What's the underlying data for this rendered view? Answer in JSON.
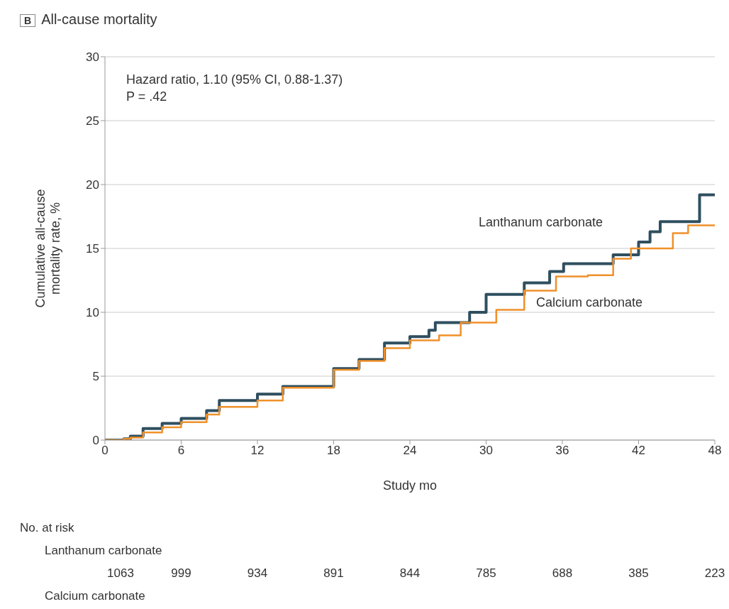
{
  "chart_data": {
    "type": "step",
    "title": "All-cause mortality",
    "xlabel": "Study mo",
    "ylabel": "Cumulative all-cause mortality rate, %",
    "xlim": [
      0,
      48
    ],
    "xticks": [
      0,
      6,
      12,
      18,
      24,
      30,
      36,
      42,
      48
    ],
    "ylim": [
      0,
      30
    ],
    "yticks": [
      0,
      5,
      10,
      15,
      20,
      25,
      30
    ],
    "grid": "y",
    "series": [
      {
        "name": "Lanthanum carbonate",
        "color": "#2f4f5f",
        "x": [
          0,
          1.5,
          2,
          3,
          4.5,
          6,
          8,
          9,
          12,
          14,
          18,
          20,
          22,
          24,
          25.5,
          26,
          28.7,
          30,
          31,
          33,
          35,
          36.1,
          38.4,
          40,
          42,
          42.9,
          43.7,
          46.3,
          46.8,
          48
        ],
        "values": [
          0,
          0.1,
          0.3,
          0.9,
          1.3,
          1.7,
          2.3,
          3.1,
          3.6,
          4.2,
          5.6,
          6.3,
          7.6,
          8.1,
          8.6,
          9.2,
          10,
          11.4,
          11.4,
          12.3,
          13.2,
          13.8,
          13.8,
          14.5,
          15.5,
          16.3,
          17.1,
          17.1,
          19.2,
          19.2
        ]
      },
      {
        "name": "Calcium carbonate",
        "color": "#f0902a",
        "x": [
          0,
          1.5,
          2,
          3,
          4.5,
          6,
          8,
          9,
          12,
          14,
          18,
          20,
          22,
          24,
          26.3,
          28,
          30.8,
          33,
          35.5,
          38,
          40,
          41.4,
          43.6,
          44.7,
          45.9,
          48
        ],
        "values": [
          0,
          0.1,
          0.2,
          0.6,
          1.0,
          1.4,
          2.0,
          2.6,
          3.1,
          4.1,
          5.5,
          6.2,
          7.2,
          7.8,
          8.2,
          9.2,
          10.2,
          11.7,
          12.8,
          12.9,
          14.2,
          15,
          15,
          16.2,
          16.8,
          16.8
        ]
      }
    ],
    "annotations": [
      "B",
      "Hazard ratio, 1.10 (95% CI, 0.88-1.37)",
      "P = .42",
      "No. at risk",
      "Lanthanum carbonate",
      "1063",
      "999",
      "934",
      "891",
      "844",
      "785",
      "688",
      "385",
      "223",
      "Calcium carbonate"
    ]
  }
}
